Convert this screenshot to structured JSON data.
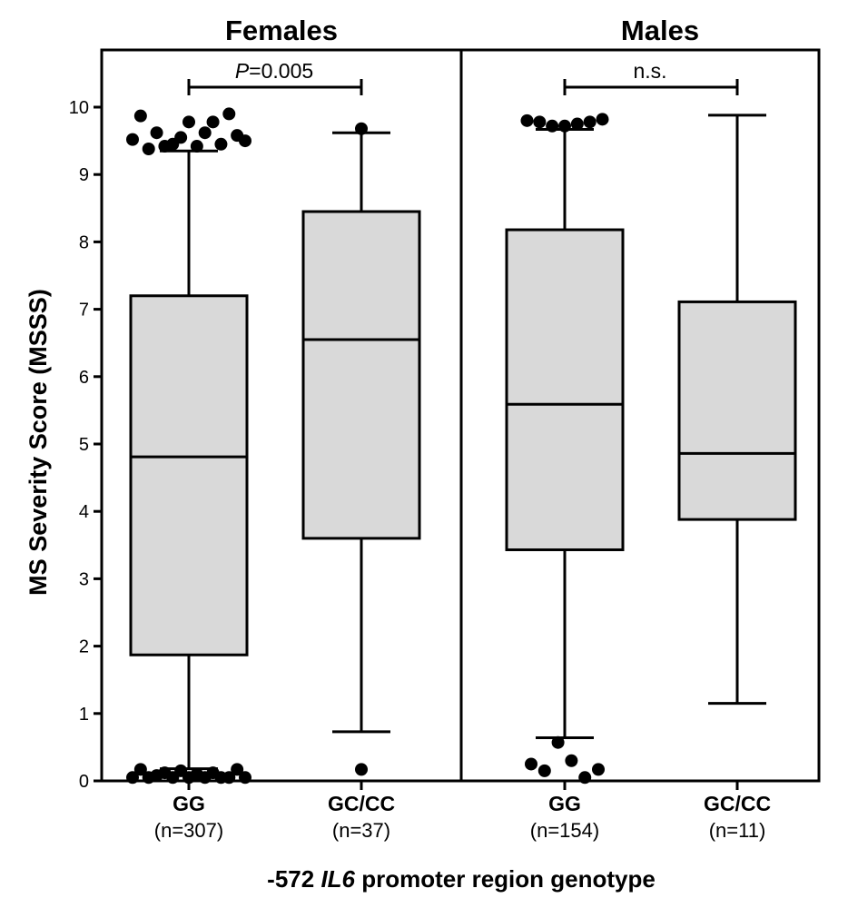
{
  "chart_data": {
    "type": "boxplot",
    "ylabel": "MS Severity Score (MSSS)",
    "xlabel": {
      "prefix": "-572 ",
      "gene": "IL6",
      "suffix": " promoter region genotype"
    },
    "ylim": [
      0,
      10.5
    ],
    "yticks": [
      "0",
      "1",
      "2",
      "3",
      "4",
      "5",
      "6",
      "7",
      "8",
      "9",
      "10"
    ],
    "panels": [
      {
        "title": "Females",
        "comparison": {
          "p_letter": "P",
          "p_text": "=0.005",
          "label": ""
        },
        "groups": [
          {
            "name": "GG",
            "n_label": "(n=307)",
            "whisker_low": 0.18,
            "q1": 1.87,
            "median": 4.81,
            "q3": 7.2,
            "whisker_high": 9.35,
            "outliers": [
              9.52,
              9.87,
              9.38,
              9.62,
              9.42,
              9.45,
              9.55,
              9.78,
              9.42,
              9.62,
              9.78,
              9.45,
              9.9,
              9.58,
              9.5,
              0.05,
              0.17,
              0.05,
              0.08,
              0.12,
              0.05,
              0.15,
              0.05,
              0.1,
              0.18,
              0.05,
              0.12,
              0.05,
              0.05,
              0.17,
              0.05
            ]
          },
          {
            "name": "GC/CC",
            "n_label": "(n=37)",
            "whisker_low": 0.73,
            "q1": 3.6,
            "median": 6.55,
            "q3": 8.45,
            "whisker_high": 9.62,
            "outliers": [
              9.68,
              0.17
            ]
          }
        ]
      },
      {
        "title": "Males",
        "comparison": {
          "p_letter": "",
          "p_text": "",
          "label": "n.s."
        },
        "groups": [
          {
            "name": "GG",
            "n_label": "(n=154)",
            "whisker_low": 0.64,
            "q1": 3.43,
            "median": 5.59,
            "q3": 8.18,
            "whisker_high": 9.67,
            "outliers": [
              9.8,
              9.78,
              9.72,
              9.72,
              9.75,
              9.78,
              9.82,
              0.25,
              0.15,
              0.57,
              0.3,
              0.05,
              0.17
            ]
          },
          {
            "name": "GC/CC",
            "n_label": "(n=11)",
            "whisker_low": 1.15,
            "q1": 3.88,
            "median": 4.86,
            "q3": 7.11,
            "whisker_high": 9.88,
            "outliers": []
          }
        ]
      }
    ]
  }
}
